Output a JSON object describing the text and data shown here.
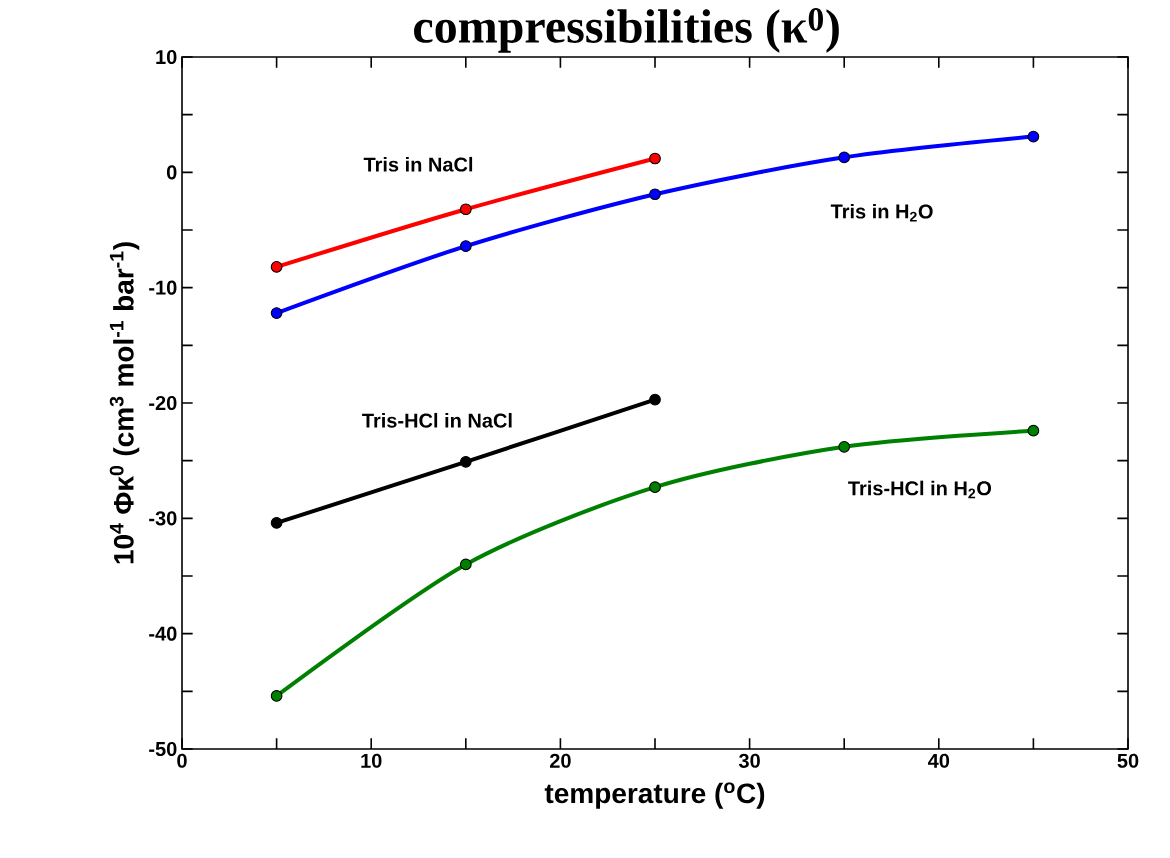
{
  "chart_data": {
    "type": "line",
    "title": "compressibilities (κ$^{0}$)",
    "xlabel": "temperature ($^{o}$C)",
    "ylabel": "10$^{4}$ Φκ$^{0}$ (cm$^{3}$ mol$^{-1}$ bar$^{-1}$)",
    "x": [
      5,
      15,
      25,
      35,
      45
    ],
    "series": [
      {
        "name": "Tris in NaCl",
        "color": "#ff0000",
        "x": [
          5,
          15,
          25
        ],
        "values": [
          -8.2,
          -3.2,
          1.2
        ]
      },
      {
        "name": "Tris in H$_{2}$O",
        "color": "#0000ff",
        "values": [
          -12.2,
          -6.4,
          -1.9,
          1.3,
          3.1
        ]
      },
      {
        "name": "Tris-HCl in NaCl",
        "color": "#000000",
        "x": [
          5,
          15,
          25
        ],
        "values": [
          -30.4,
          -25.1,
          -19.7
        ]
      },
      {
        "name": "Tris-HCl in H$_{2}$O",
        "color": "#008000",
        "values": [
          -45.4,
          -34.0,
          -27.3,
          -23.8,
          -22.4
        ]
      }
    ],
    "xlim": [
      0,
      50
    ],
    "ylim": [
      -50,
      10
    ],
    "xticks": [
      0,
      10,
      20,
      30,
      40,
      50
    ],
    "yticks": [
      -50,
      -40,
      -30,
      -20,
      -10,
      0,
      10
    ],
    "marker": "circle",
    "line_style": "solid"
  }
}
